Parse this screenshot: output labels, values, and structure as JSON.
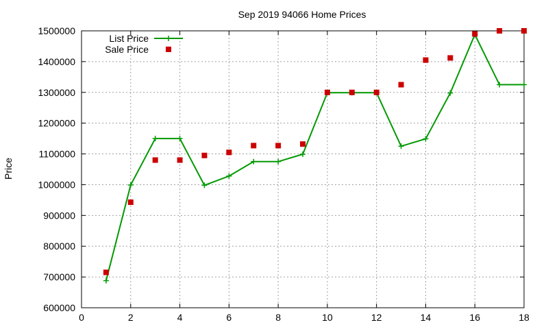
{
  "chart_data": {
    "type": "line",
    "title": "Sep 2019 94066 Home Prices",
    "xlabel": "",
    "ylabel": "Price",
    "xlim": [
      0,
      18
    ],
    "ylim": [
      600000,
      1500000
    ],
    "x_ticks": [
      "0",
      "2",
      "4",
      "6",
      "8",
      "10",
      "12",
      "14",
      "16",
      "18"
    ],
    "y_ticks": [
      "600000",
      "700000",
      "800000",
      "900000",
      "1000000",
      "1100000",
      "1200000",
      "1300000",
      "1400000",
      "1500000"
    ],
    "grid": true,
    "legend_position": "top-left",
    "series": [
      {
        "name": "List Price",
        "style": "line-points",
        "color": "#009900",
        "x": [
          1,
          2,
          3,
          4,
          5,
          6,
          7,
          8,
          9,
          10,
          11,
          12,
          13,
          14,
          15,
          16,
          17,
          18
        ],
        "y": [
          688000,
          999000,
          1150000,
          1150000,
          998000,
          1028000,
          1075000,
          1075000,
          1099000,
          1299000,
          1299000,
          1299000,
          1125000,
          1149000,
          1298000,
          1488000,
          1325000,
          1325000
        ]
      },
      {
        "name": "Sale Price",
        "style": "points",
        "color": "#cc0000",
        "x": [
          1,
          2,
          3,
          4,
          5,
          6,
          7,
          8,
          9,
          10,
          11,
          12,
          13,
          14,
          15,
          16,
          17,
          18
        ],
        "y": [
          715000,
          943000,
          1080000,
          1080000,
          1095000,
          1105000,
          1127000,
          1127000,
          1132000,
          1300000,
          1300000,
          1300000,
          1325000,
          1405000,
          1412000,
          1490000,
          1500000,
          1500000
        ]
      }
    ]
  }
}
